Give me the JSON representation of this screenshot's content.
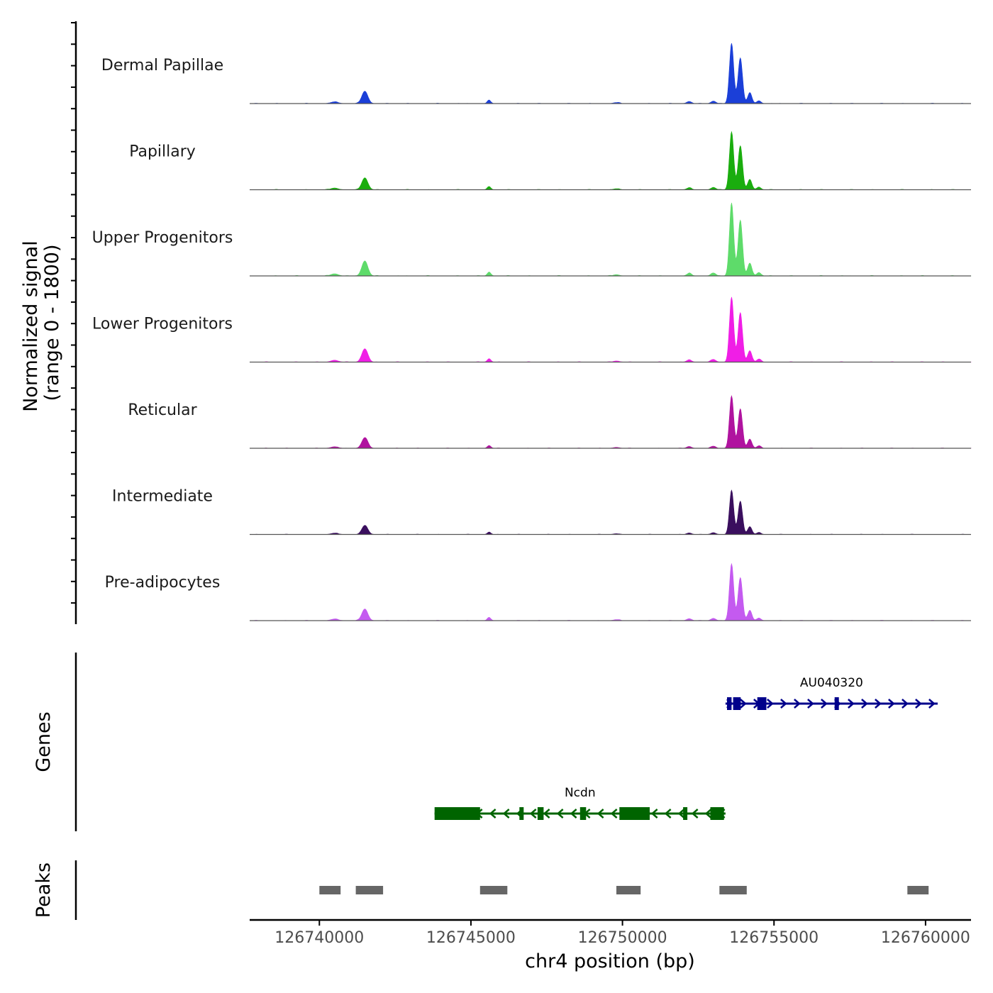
{
  "chart_data": {
    "type": "area",
    "title": "",
    "region": {
      "chrom": "chr4",
      "start": 126737700,
      "end": 126761500
    },
    "ylabel": "Normalized signal",
    "ylabel2": "(range 0 - 1800)",
    "yrange": [
      0,
      1800
    ],
    "xlabel": "chr4 position (bp)",
    "xticks": [
      "126740000",
      "126745000",
      "126750000",
      "126755000",
      "126760000"
    ],
    "xtick_values": [
      126740000,
      126745000,
      126750000,
      126755000,
      126760000
    ],
    "peak_template": [
      [
        126740500,
        50,
        120
      ],
      [
        126741500,
        350,
        100
      ],
      [
        126745600,
        90,
        60
      ],
      [
        126749800,
        30,
        100
      ],
      [
        126752200,
        60,
        80
      ],
      [
        126753000,
        70,
        80
      ],
      [
        126753600,
        1700,
        70
      ],
      [
        126753850,
        350,
        70
      ],
      [
        126753900,
        1000,
        70
      ],
      [
        126754200,
        300,
        70
      ],
      [
        126754500,
        80,
        70
      ]
    ],
    "series": [
      {
        "name": "Dermal Papillae",
        "color": "#1b3fd8",
        "scale": 0.52
      },
      {
        "name": "Papillary",
        "color": "#1aad0e",
        "scale": 0.5
      },
      {
        "name": "Upper Progenitors",
        "color": "#5edb6a",
        "scale": 0.63
      },
      {
        "name": "Lower Progenitors",
        "color": "#f01ee6",
        "scale": 0.56
      },
      {
        "name": "Reticular",
        "color": "#b0139f",
        "scale": 0.45
      },
      {
        "name": "Intermediate",
        "color": "#3a0f5e",
        "scale": 0.38
      },
      {
        "name": "Pre-adipocytes",
        "color": "#c45af0",
        "scale": 0.49
      }
    ],
    "genes_label": "Genes",
    "genes": [
      {
        "name": "AU040320",
        "color": "#00008b",
        "strand": "+",
        "start": 126753400,
        "end": 126760400,
        "exons": [
          [
            126753450,
            126753600
          ],
          [
            126753650,
            126753900
          ],
          [
            126754450,
            126754750
          ],
          [
            126757000,
            126757120
          ]
        ]
      },
      {
        "name": "Ncdn",
        "color": "#006400",
        "strand": "-",
        "start": 126743800,
        "end": 126753400,
        "exons": [
          [
            126743800,
            126745300
          ],
          [
            126746600,
            126746700
          ],
          [
            126747200,
            126747400
          ],
          [
            126748600,
            126748800
          ],
          [
            126749900,
            126750900
          ],
          [
            126752000,
            126752100
          ],
          [
            126752900,
            126753350
          ]
        ]
      }
    ],
    "peaks_label": "Peaks",
    "peaks": [
      [
        126740000,
        126740700
      ],
      [
        126741200,
        126742100
      ],
      [
        126745300,
        126746200
      ],
      [
        126749800,
        126750600
      ],
      [
        126753200,
        126754100
      ],
      [
        126759400,
        126760100
      ]
    ]
  }
}
